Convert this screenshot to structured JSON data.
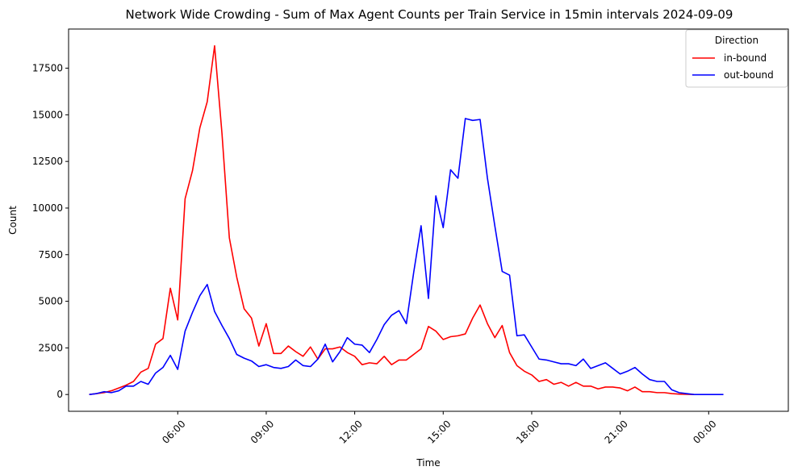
{
  "chart_data": {
    "type": "line",
    "title": "Network Wide Crowding - Sum of Max Agent Counts per Train Service in 15min intervals 2024-09-09",
    "xlabel": "Time",
    "ylabel": "Count",
    "x_unit": "hours",
    "xlim": [
      2.3,
      26.7
    ],
    "ylim": [
      -900,
      19600
    ],
    "xticks": [
      {
        "value": 6,
        "label": "06:00"
      },
      {
        "value": 9,
        "label": "09:00"
      },
      {
        "value": 12,
        "label": "12:00"
      },
      {
        "value": 15,
        "label": "15:00"
      },
      {
        "value": 18,
        "label": "18:00"
      },
      {
        "value": 21,
        "label": "21:00"
      },
      {
        "value": 24,
        "label": "00:00"
      }
    ],
    "yticks": [
      {
        "value": 0,
        "label": "0"
      },
      {
        "value": 2500,
        "label": "2500"
      },
      {
        "value": 5000,
        "label": "5000"
      },
      {
        "value": 7500,
        "label": "7500"
      },
      {
        "value": 10000,
        "label": "10000"
      },
      {
        "value": 12500,
        "label": "12500"
      },
      {
        "value": 15000,
        "label": "15000"
      },
      {
        "value": 17500,
        "label": "17500"
      }
    ],
    "grid": false,
    "legend": {
      "title": "Direction",
      "placement": "top-right"
    },
    "series": [
      {
        "name": "in-bound",
        "color": "#ff0000",
        "points": [
          [
            3.0,
            0
          ],
          [
            3.25,
            50
          ],
          [
            3.5,
            100
          ],
          [
            3.75,
            200
          ],
          [
            4.0,
            350
          ],
          [
            4.25,
            500
          ],
          [
            4.5,
            700
          ],
          [
            4.75,
            1200
          ],
          [
            5.0,
            1400
          ],
          [
            5.25,
            2700
          ],
          [
            5.5,
            3000
          ],
          [
            5.75,
            5700
          ],
          [
            6.0,
            4000
          ],
          [
            6.25,
            10500
          ],
          [
            6.5,
            12000
          ],
          [
            6.75,
            14300
          ],
          [
            7.0,
            15700
          ],
          [
            7.25,
            18700
          ],
          [
            7.5,
            14000
          ],
          [
            7.75,
            8400
          ],
          [
            8.0,
            6300
          ],
          [
            8.25,
            4600
          ],
          [
            8.5,
            4100
          ],
          [
            8.75,
            2600
          ],
          [
            9.0,
            3800
          ],
          [
            9.25,
            2200
          ],
          [
            9.5,
            2200
          ],
          [
            9.75,
            2600
          ],
          [
            10.0,
            2300
          ],
          [
            10.25,
            2050
          ],
          [
            10.5,
            2550
          ],
          [
            10.75,
            1900
          ],
          [
            11.0,
            2450
          ],
          [
            11.25,
            2450
          ],
          [
            11.5,
            2550
          ],
          [
            11.75,
            2250
          ],
          [
            12.0,
            2050
          ],
          [
            12.25,
            1600
          ],
          [
            12.5,
            1700
          ],
          [
            12.75,
            1650
          ],
          [
            13.0,
            2050
          ],
          [
            13.25,
            1600
          ],
          [
            13.5,
            1850
          ],
          [
            13.75,
            1850
          ],
          [
            14.0,
            2150
          ],
          [
            14.25,
            2450
          ],
          [
            14.5,
            3650
          ],
          [
            14.75,
            3400
          ],
          [
            15.0,
            2950
          ],
          [
            15.25,
            3100
          ],
          [
            15.5,
            3150
          ],
          [
            15.75,
            3250
          ],
          [
            16.0,
            4100
          ],
          [
            16.25,
            4800
          ],
          [
            16.5,
            3800
          ],
          [
            16.75,
            3050
          ],
          [
            17.0,
            3700
          ],
          [
            17.25,
            2250
          ],
          [
            17.5,
            1550
          ],
          [
            17.75,
            1250
          ],
          [
            18.0,
            1050
          ],
          [
            18.25,
            700
          ],
          [
            18.5,
            800
          ],
          [
            18.75,
            550
          ],
          [
            19.0,
            650
          ],
          [
            19.25,
            450
          ],
          [
            19.5,
            650
          ],
          [
            19.75,
            450
          ],
          [
            20.0,
            450
          ],
          [
            20.25,
            300
          ],
          [
            20.5,
            400
          ],
          [
            20.75,
            400
          ],
          [
            21.0,
            350
          ],
          [
            21.25,
            200
          ],
          [
            21.5,
            400
          ],
          [
            21.75,
            150
          ],
          [
            22.0,
            150
          ],
          [
            22.25,
            100
          ],
          [
            22.5,
            100
          ],
          [
            22.75,
            50
          ],
          [
            23.0,
            20
          ],
          [
            23.25,
            10
          ],
          [
            23.5,
            0
          ]
        ]
      },
      {
        "name": "out-bound",
        "color": "#0000ff",
        "points": [
          [
            3.0,
            0
          ],
          [
            3.25,
            50
          ],
          [
            3.5,
            150
          ],
          [
            3.75,
            100
          ],
          [
            4.0,
            200
          ],
          [
            4.25,
            450
          ],
          [
            4.5,
            450
          ],
          [
            4.75,
            700
          ],
          [
            5.0,
            550
          ],
          [
            5.25,
            1150
          ],
          [
            5.5,
            1450
          ],
          [
            5.75,
            2100
          ],
          [
            6.0,
            1350
          ],
          [
            6.25,
            3400
          ],
          [
            6.5,
            4400
          ],
          [
            6.75,
            5300
          ],
          [
            7.0,
            5900
          ],
          [
            7.25,
            4450
          ],
          [
            7.5,
            3700
          ],
          [
            7.75,
            3000
          ],
          [
            8.0,
            2150
          ],
          [
            8.25,
            1950
          ],
          [
            8.5,
            1800
          ],
          [
            8.75,
            1500
          ],
          [
            9.0,
            1600
          ],
          [
            9.25,
            1450
          ],
          [
            9.5,
            1400
          ],
          [
            9.75,
            1500
          ],
          [
            10.0,
            1850
          ],
          [
            10.25,
            1550
          ],
          [
            10.5,
            1500
          ],
          [
            10.75,
            1900
          ],
          [
            11.0,
            2700
          ],
          [
            11.25,
            1750
          ],
          [
            11.5,
            2300
          ],
          [
            11.75,
            3050
          ],
          [
            12.0,
            2700
          ],
          [
            12.25,
            2650
          ],
          [
            12.5,
            2250
          ],
          [
            12.75,
            2950
          ],
          [
            13.0,
            3750
          ],
          [
            13.25,
            4250
          ],
          [
            13.5,
            4500
          ],
          [
            13.75,
            3800
          ],
          [
            14.0,
            6550
          ],
          [
            14.25,
            9050
          ],
          [
            14.5,
            5150
          ],
          [
            14.75,
            10650
          ],
          [
            15.0,
            8950
          ],
          [
            15.25,
            12050
          ],
          [
            15.5,
            11600
          ],
          [
            15.75,
            14800
          ],
          [
            16.0,
            14700
          ],
          [
            16.25,
            14750
          ],
          [
            16.5,
            11600
          ],
          [
            16.75,
            9050
          ],
          [
            17.0,
            6600
          ],
          [
            17.25,
            6400
          ],
          [
            17.5,
            3150
          ],
          [
            17.75,
            3200
          ],
          [
            18.0,
            2550
          ],
          [
            18.25,
            1900
          ],
          [
            18.5,
            1850
          ],
          [
            18.75,
            1750
          ],
          [
            19.0,
            1650
          ],
          [
            19.25,
            1650
          ],
          [
            19.5,
            1550
          ],
          [
            19.75,
            1900
          ],
          [
            20.0,
            1400
          ],
          [
            20.25,
            1550
          ],
          [
            20.5,
            1700
          ],
          [
            20.75,
            1400
          ],
          [
            21.0,
            1100
          ],
          [
            21.25,
            1250
          ],
          [
            21.5,
            1450
          ],
          [
            21.75,
            1100
          ],
          [
            22.0,
            800
          ],
          [
            22.25,
            700
          ],
          [
            22.5,
            700
          ],
          [
            22.75,
            250
          ],
          [
            23.0,
            100
          ],
          [
            23.25,
            50
          ],
          [
            23.5,
            0
          ],
          [
            24.0,
            0
          ],
          [
            24.5,
            0
          ]
        ]
      }
    ]
  }
}
